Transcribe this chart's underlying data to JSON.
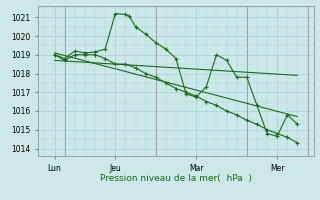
{
  "bg_color": "#cce8e8",
  "grid_major_color": "#aad4d4",
  "grid_minor_color": "#bbdede",
  "line_color": "#1a6b1a",
  "xlabel": "Pression niveau de la mer(  hPa  )",
  "ylim_min": 1013.6,
  "ylim_max": 1021.6,
  "xlim_min": -0.3,
  "xlim_max": 13.3,
  "yticks": [
    1014,
    1015,
    1016,
    1017,
    1018,
    1019,
    1020,
    1021
  ],
  "xtick_pos": [
    0.5,
    3.5,
    7.5,
    11.5
  ],
  "xtick_labels": [
    "Lun",
    "Jeu",
    "Mar",
    "Mer"
  ],
  "vlines": [
    1.0,
    5.5,
    10.0,
    13.0
  ],
  "zigzag1_x": [
    0.5,
    1.0,
    1.5,
    2.0,
    2.5,
    3.0,
    3.5,
    4.0,
    4.2,
    4.5,
    5.0,
    5.5,
    6.0,
    6.5,
    7.0,
    7.5,
    8.0,
    8.5,
    9.0,
    9.5,
    10.0,
    10.5,
    11.0,
    11.5,
    12.0,
    12.5
  ],
  "zigzag1_y": [
    1019.0,
    1018.8,
    1019.2,
    1019.1,
    1019.15,
    1019.3,
    1021.2,
    1021.15,
    1021.05,
    1020.5,
    1020.1,
    1019.65,
    1019.3,
    1018.8,
    1016.9,
    1016.75,
    1017.3,
    1019.0,
    1018.7,
    1017.8,
    1017.8,
    1016.3,
    1014.8,
    1014.65,
    1015.8,
    1015.3
  ],
  "zigzag2_x": [
    0.5,
    1.0,
    1.5,
    2.0,
    2.5,
    3.0,
    3.5,
    4.0,
    4.5,
    5.0,
    5.5,
    6.0,
    6.5,
    7.0,
    7.5,
    8.0,
    8.5,
    9.0,
    9.5,
    10.0,
    10.5,
    11.0,
    11.5,
    12.0,
    12.5
  ],
  "zigzag2_y": [
    1019.0,
    1018.7,
    1019.0,
    1019.0,
    1019.0,
    1018.8,
    1018.5,
    1018.5,
    1018.3,
    1018.0,
    1017.8,
    1017.5,
    1017.2,
    1017.0,
    1016.8,
    1016.5,
    1016.3,
    1016.0,
    1015.8,
    1015.5,
    1015.3,
    1015.0,
    1014.8,
    1014.6,
    1014.3
  ],
  "trend1_x": [
    0.5,
    12.5
  ],
  "trend1_y": [
    1018.7,
    1017.9
  ],
  "trend2_x": [
    0.5,
    12.5
  ],
  "trend2_y": [
    1019.1,
    1015.7
  ]
}
